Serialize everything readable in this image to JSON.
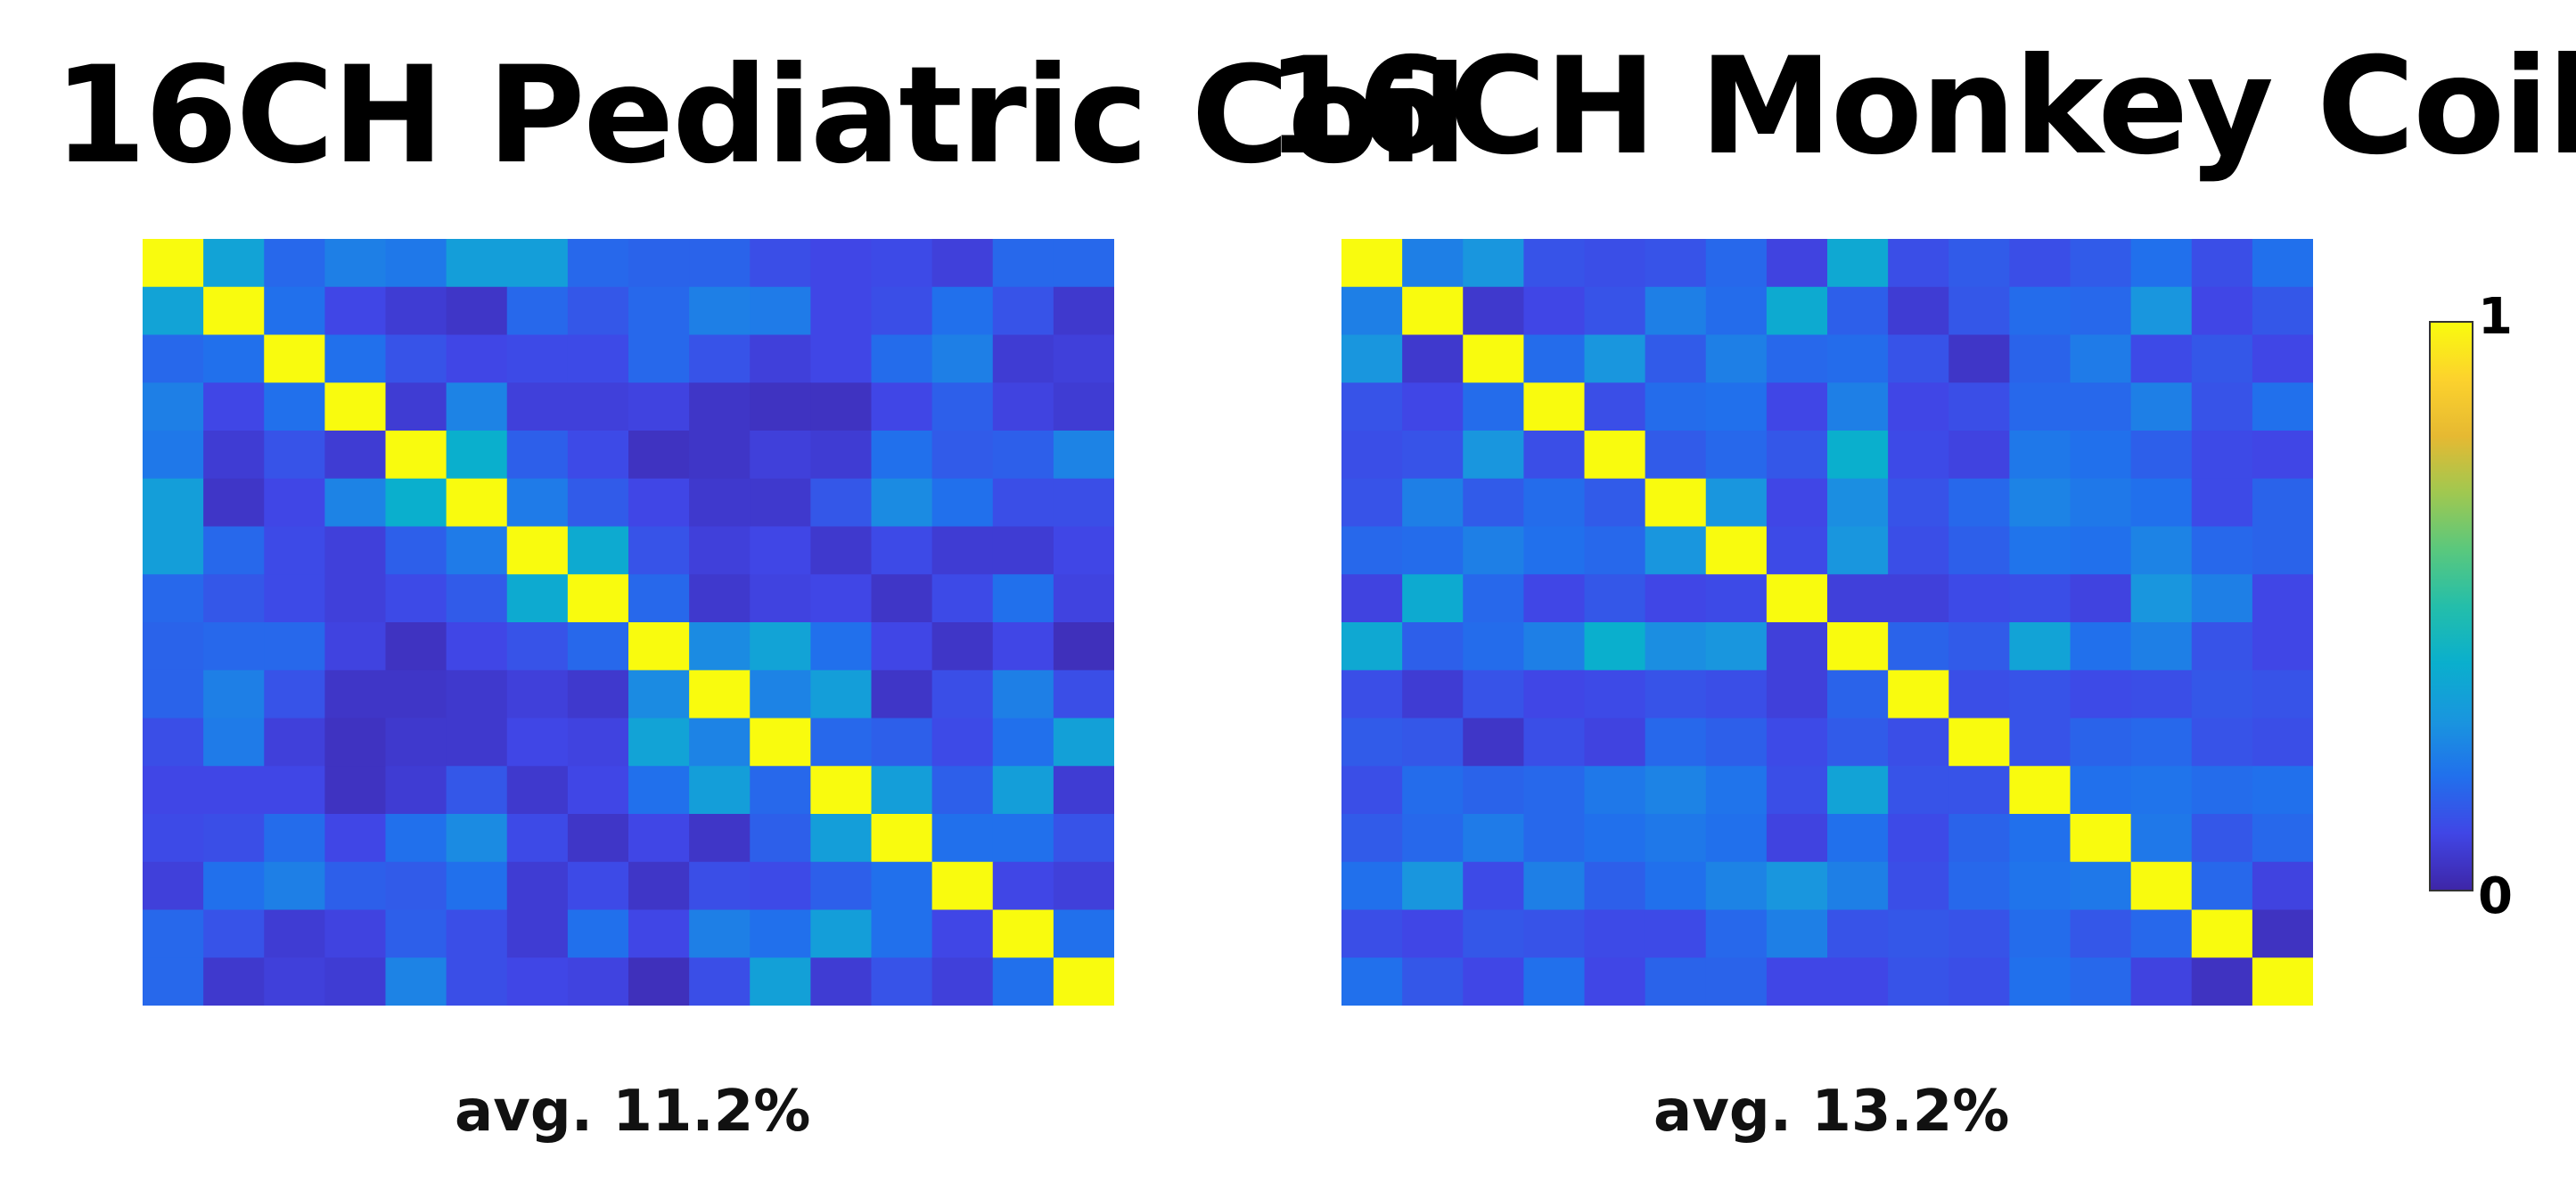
{
  "charts": [
    {
      "title": "16CH Pediatric Coil",
      "caption": "avg. 11.2%"
    },
    {
      "title": "16CH Monkey Coil",
      "caption": "avg. 13.2%"
    }
  ],
  "colorbar": {
    "min_label": "0",
    "max_label": "1",
    "colormap": "parula"
  },
  "chart_data": [
    {
      "type": "heatmap",
      "title": "16CH Pediatric Coil",
      "annotation": "avg. 11.2%",
      "rows": 16,
      "cols": 16,
      "vmin": 0,
      "vmax": 1,
      "values": [
        [
          1.0,
          0.35,
          0.18,
          0.24,
          0.22,
          0.33,
          0.33,
          0.18,
          0.17,
          0.17,
          0.12,
          0.1,
          0.11,
          0.08,
          0.18,
          0.18
        ],
        [
          0.35,
          1.0,
          0.2,
          0.1,
          0.07,
          0.05,
          0.18,
          0.14,
          0.18,
          0.24,
          0.23,
          0.1,
          0.12,
          0.2,
          0.13,
          0.06
        ],
        [
          0.18,
          0.2,
          1.0,
          0.2,
          0.13,
          0.1,
          0.11,
          0.11,
          0.18,
          0.13,
          0.08,
          0.1,
          0.19,
          0.24,
          0.07,
          0.08
        ],
        [
          0.24,
          0.1,
          0.2,
          1.0,
          0.07,
          0.25,
          0.08,
          0.08,
          0.09,
          0.05,
          0.04,
          0.04,
          0.1,
          0.16,
          0.09,
          0.07
        ],
        [
          0.22,
          0.07,
          0.13,
          0.07,
          1.0,
          0.4,
          0.16,
          0.11,
          0.04,
          0.05,
          0.08,
          0.07,
          0.2,
          0.15,
          0.16,
          0.25
        ],
        [
          0.33,
          0.05,
          0.1,
          0.25,
          0.4,
          1.0,
          0.23,
          0.15,
          0.1,
          0.06,
          0.06,
          0.14,
          0.27,
          0.2,
          0.12,
          0.12
        ],
        [
          0.33,
          0.18,
          0.11,
          0.08,
          0.16,
          0.23,
          1.0,
          0.38,
          0.13,
          0.08,
          0.1,
          0.06,
          0.11,
          0.07,
          0.07,
          0.1
        ],
        [
          0.18,
          0.14,
          0.11,
          0.08,
          0.11,
          0.15,
          0.38,
          1.0,
          0.18,
          0.06,
          0.09,
          0.1,
          0.05,
          0.11,
          0.2,
          0.09
        ],
        [
          0.17,
          0.18,
          0.18,
          0.09,
          0.04,
          0.1,
          0.13,
          0.18,
          1.0,
          0.27,
          0.35,
          0.2,
          0.1,
          0.05,
          0.1,
          0.03
        ],
        [
          0.17,
          0.24,
          0.13,
          0.05,
          0.05,
          0.06,
          0.08,
          0.06,
          0.27,
          1.0,
          0.25,
          0.33,
          0.05,
          0.12,
          0.24,
          0.12
        ],
        [
          0.12,
          0.23,
          0.08,
          0.04,
          0.06,
          0.06,
          0.1,
          0.09,
          0.35,
          0.25,
          1.0,
          0.18,
          0.16,
          0.11,
          0.2,
          0.34
        ],
        [
          0.1,
          0.1,
          0.1,
          0.04,
          0.07,
          0.14,
          0.06,
          0.1,
          0.2,
          0.33,
          0.18,
          1.0,
          0.33,
          0.16,
          0.33,
          0.07
        ],
        [
          0.11,
          0.12,
          0.19,
          0.1,
          0.2,
          0.27,
          0.11,
          0.05,
          0.1,
          0.05,
          0.16,
          0.33,
          1.0,
          0.2,
          0.2,
          0.13
        ],
        [
          0.08,
          0.2,
          0.24,
          0.16,
          0.15,
          0.2,
          0.07,
          0.11,
          0.05,
          0.12,
          0.11,
          0.16,
          0.2,
          1.0,
          0.1,
          0.08
        ],
        [
          0.18,
          0.13,
          0.07,
          0.09,
          0.16,
          0.12,
          0.07,
          0.2,
          0.1,
          0.24,
          0.2,
          0.33,
          0.2,
          0.1,
          1.0,
          0.2
        ],
        [
          0.18,
          0.06,
          0.08,
          0.07,
          0.25,
          0.12,
          0.1,
          0.09,
          0.03,
          0.12,
          0.34,
          0.07,
          0.13,
          0.08,
          0.2,
          1.0
        ]
      ]
    },
    {
      "type": "heatmap",
      "title": "16CH Monkey Coil",
      "annotation": "avg. 13.2%",
      "rows": 16,
      "cols": 16,
      "vmin": 0,
      "vmax": 1,
      "values": [
        [
          1.0,
          0.24,
          0.3,
          0.13,
          0.12,
          0.13,
          0.18,
          0.09,
          0.37,
          0.12,
          0.15,
          0.12,
          0.15,
          0.2,
          0.12,
          0.2
        ],
        [
          0.24,
          1.0,
          0.06,
          0.1,
          0.13,
          0.24,
          0.19,
          0.38,
          0.16,
          0.07,
          0.14,
          0.19,
          0.18,
          0.3,
          0.1,
          0.14
        ],
        [
          0.3,
          0.06,
          1.0,
          0.19,
          0.3,
          0.15,
          0.24,
          0.18,
          0.19,
          0.13,
          0.05,
          0.17,
          0.23,
          0.11,
          0.14,
          0.1
        ],
        [
          0.13,
          0.1,
          0.19,
          1.0,
          0.12,
          0.19,
          0.2,
          0.1,
          0.24,
          0.1,
          0.12,
          0.18,
          0.18,
          0.24,
          0.13,
          0.2
        ],
        [
          0.12,
          0.13,
          0.3,
          0.12,
          1.0,
          0.15,
          0.18,
          0.14,
          0.4,
          0.11,
          0.09,
          0.22,
          0.2,
          0.16,
          0.11,
          0.1
        ],
        [
          0.13,
          0.24,
          0.15,
          0.19,
          0.15,
          1.0,
          0.3,
          0.1,
          0.28,
          0.13,
          0.18,
          0.25,
          0.22,
          0.2,
          0.11,
          0.17
        ],
        [
          0.18,
          0.19,
          0.24,
          0.2,
          0.18,
          0.3,
          1.0,
          0.11,
          0.3,
          0.12,
          0.16,
          0.21,
          0.2,
          0.25,
          0.18,
          0.17
        ],
        [
          0.09,
          0.38,
          0.18,
          0.1,
          0.14,
          0.1,
          0.11,
          1.0,
          0.08,
          0.08,
          0.11,
          0.12,
          0.09,
          0.3,
          0.24,
          0.1
        ],
        [
          0.37,
          0.16,
          0.19,
          0.24,
          0.4,
          0.28,
          0.3,
          0.08,
          1.0,
          0.17,
          0.15,
          0.35,
          0.2,
          0.24,
          0.13,
          0.1
        ],
        [
          0.12,
          0.07,
          0.13,
          0.1,
          0.11,
          0.13,
          0.12,
          0.08,
          0.17,
          1.0,
          0.12,
          0.13,
          0.11,
          0.12,
          0.14,
          0.13
        ],
        [
          0.15,
          0.14,
          0.05,
          0.12,
          0.09,
          0.18,
          0.16,
          0.11,
          0.15,
          0.12,
          1.0,
          0.13,
          0.17,
          0.18,
          0.13,
          0.12
        ],
        [
          0.12,
          0.19,
          0.17,
          0.18,
          0.22,
          0.25,
          0.21,
          0.12,
          0.35,
          0.13,
          0.13,
          1.0,
          0.2,
          0.21,
          0.19,
          0.2
        ],
        [
          0.15,
          0.18,
          0.23,
          0.18,
          0.2,
          0.22,
          0.2,
          0.09,
          0.2,
          0.11,
          0.17,
          0.2,
          1.0,
          0.22,
          0.14,
          0.18
        ],
        [
          0.2,
          0.3,
          0.11,
          0.24,
          0.16,
          0.2,
          0.25,
          0.3,
          0.24,
          0.12,
          0.18,
          0.21,
          0.22,
          1.0,
          0.18,
          0.09
        ],
        [
          0.12,
          0.1,
          0.14,
          0.13,
          0.11,
          0.11,
          0.18,
          0.24,
          0.13,
          0.14,
          0.13,
          0.19,
          0.14,
          0.18,
          1.0,
          0.04
        ],
        [
          0.2,
          0.14,
          0.1,
          0.2,
          0.1,
          0.17,
          0.17,
          0.1,
          0.1,
          0.13,
          0.12,
          0.2,
          0.18,
          0.09,
          0.04,
          1.0
        ]
      ]
    }
  ]
}
